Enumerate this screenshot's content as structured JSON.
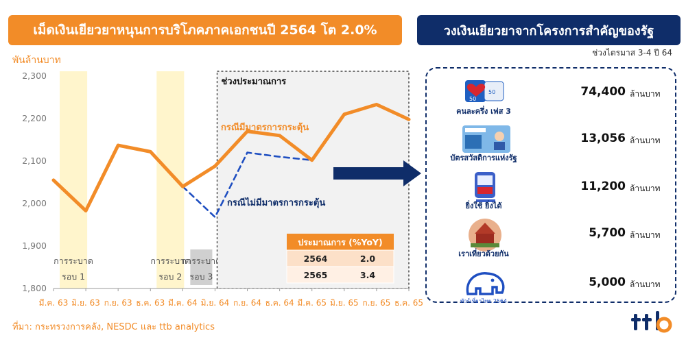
{
  "left_title": "เม็ดเงินเยียวยาหนุนการบริโภคภาคเอกชนปี 2564 โต 2.0%",
  "right_title": "วงเงินเยียวยาจากโครงการสำคัญของรัฐ",
  "period_note": "ช่วงไตรมาส 3-4 ปี 64",
  "source": "ที่มา: กระทรวงการคลัง, NESDC และ ttb analytics",
  "programs": [
    {
      "name": "คนละครึ่ง เฟส 3",
      "amount": "74,400",
      "unit": "ล้านบาท",
      "icon": "puzzle-heart-icon"
    },
    {
      "name": "บัตรสวัสดิการแห่งรัฐ",
      "amount": "13,056",
      "unit": "ล้านบาท",
      "icon": "welfare-card-icon"
    },
    {
      "name": "ยิ่งใช้ ยิ่งได้",
      "amount": "11,200",
      "unit": "ล้านบาท",
      "icon": "wallet-app-icon"
    },
    {
      "name": "เราเที่ยวด้วยกัน",
      "amount": "5,700",
      "unit": "ล้านบาท",
      "icon": "travel-temple-icon"
    },
    {
      "name": "ทัวร์เที่ยวไทย 2564",
      "amount": "5,000",
      "unit": "ล้านบาท",
      "icon": "elephant-icon"
    }
  ],
  "colors": {
    "orange": "#F28C28",
    "navy": "#0F2D69",
    "wave_band": "#FFF5CC",
    "forecast_bg": "#F2F2F2"
  },
  "chart_data": {
    "type": "line",
    "ylabel": "พันล้านบาท",
    "ylim": [
      1800,
      2300
    ],
    "yticks": [
      1800,
      1900,
      2000,
      2100,
      2200,
      2300
    ],
    "ytick_labels": [
      "1,800",
      "1,900",
      "2,000",
      "2,100",
      "2,200",
      "2,300"
    ],
    "categories": [
      "มี.ค. 63",
      "มิ.ย. 63",
      "ก.ย. 63",
      "ธ.ค. 63",
      "มี.ค. 64",
      "มิ.ย. 64",
      "ก.ย. 64",
      "ธ.ค. 64",
      "มี.ค. 65",
      "มิ.ย. 65",
      "ก.ย. 65",
      "ธ.ค. 65"
    ],
    "series": [
      {
        "name": "กรณีมีมาตรการกระตุ้น",
        "style": "solid",
        "color": "#F28C28",
        "values": [
          2055,
          1983,
          2137,
          2122,
          2040,
          2088,
          2170,
          2160,
          2102,
          2210,
          2233,
          2198
        ]
      },
      {
        "name": "กรณีไม่มีมาตรการกระตุ้น",
        "style": "dashed",
        "color": "#1F4FC1",
        "values": [
          null,
          null,
          null,
          null,
          2040,
          1968,
          2120,
          2110,
          2102,
          null,
          null,
          null
        ]
      }
    ],
    "bands": [
      {
        "label_line1": "การระบาด",
        "label_line2": "รอบ 1",
        "from": 0,
        "to": 1
      },
      {
        "label_line1": "การระบาด",
        "label_line2": "รอบ 2",
        "from": 3,
        "to": 4
      },
      {
        "label_line1": "การระบาด",
        "label_line2": "รอบ 3",
        "from": 4,
        "to": 5
      }
    ],
    "forecast_label": "ช่วงประมาณการ",
    "forecast_from": 5,
    "table": {
      "header": [
        "ประมาณการ (%YoY)",
        ""
      ],
      "rows": [
        [
          "2564",
          "2.0"
        ],
        [
          "2565",
          "3.4"
        ]
      ]
    }
  }
}
